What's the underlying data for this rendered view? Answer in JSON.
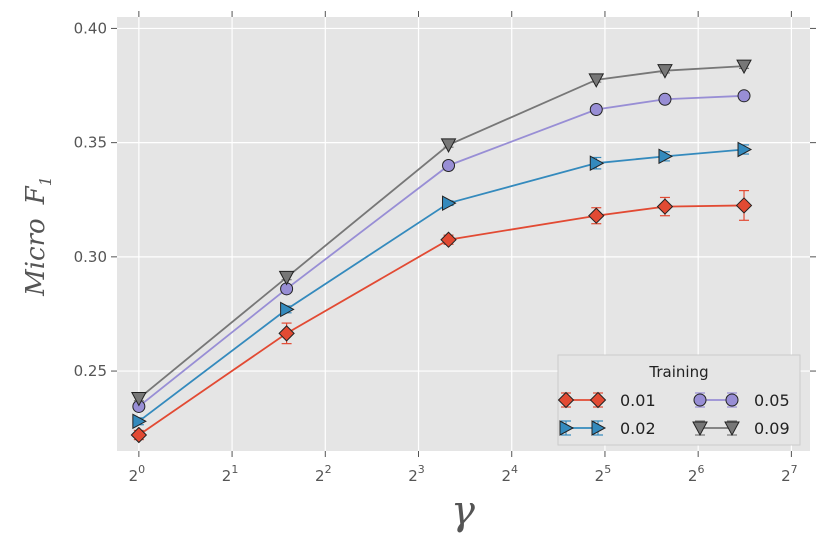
{
  "chart_data": {
    "type": "line",
    "xlabel": "γ",
    "ylabel_main": "Micro",
    "ylabel_var": "F",
    "ylabel_sub": "1",
    "x_scale": "log2",
    "xlim": [
      0.85,
      147
    ],
    "ylim": [
      0.215,
      0.405
    ],
    "x_ticks": [
      {
        "value": 1,
        "base": "2",
        "exp": "0"
      },
      {
        "value": 2,
        "base": "2",
        "exp": "1"
      },
      {
        "value": 4,
        "base": "2",
        "exp": "2"
      },
      {
        "value": 8,
        "base": "2",
        "exp": "3"
      },
      {
        "value": 16,
        "base": "2",
        "exp": "4"
      },
      {
        "value": 32,
        "base": "2",
        "exp": "5"
      },
      {
        "value": 64,
        "base": "2",
        "exp": "6"
      },
      {
        "value": 128,
        "base": "2",
        "exp": "7"
      }
    ],
    "y_ticks": [
      {
        "value": 0.25,
        "label": "0.25"
      },
      {
        "value": 0.3,
        "label": "0.30"
      },
      {
        "value": 0.35,
        "label": "0.35"
      },
      {
        "value": 0.4,
        "label": "0.40"
      }
    ],
    "grid": true,
    "x": [
      1,
      3,
      10,
      30,
      50,
      90
    ],
    "legend": {
      "title": "Training",
      "position": "lower-right",
      "columns": 2
    },
    "series": [
      {
        "name": "0.01",
        "color": "#E24A33",
        "marker": "diamond",
        "values": [
          0.222,
          0.2665,
          0.3075,
          0.318,
          0.322,
          0.3225
        ],
        "errors": [
          0.002,
          0.0045,
          0.002,
          0.0035,
          0.004,
          0.0065
        ]
      },
      {
        "name": "0.02",
        "color": "#348ABD",
        "marker": "triangle-right",
        "values": [
          0.228,
          0.277,
          0.3235,
          0.341,
          0.344,
          0.347
        ],
        "errors": [
          0.0015,
          0.0015,
          0.001,
          0.0025,
          0.002,
          0.002
        ]
      },
      {
        "name": "0.05",
        "color": "#988ED5",
        "marker": "circle",
        "values": [
          0.2345,
          0.286,
          0.34,
          0.3645,
          0.369,
          0.3705
        ],
        "errors": [
          0.0015,
          0.0015,
          0.001,
          0.0015,
          0.001,
          0.001
        ]
      },
      {
        "name": "0.09",
        "color": "#777777",
        "marker": "triangle-down",
        "values": [
          0.238,
          0.291,
          0.349,
          0.3775,
          0.3815,
          0.3835
        ],
        "errors": [
          0.001,
          0.001,
          0.001,
          0.001,
          0.001,
          0.001
        ]
      }
    ]
  }
}
